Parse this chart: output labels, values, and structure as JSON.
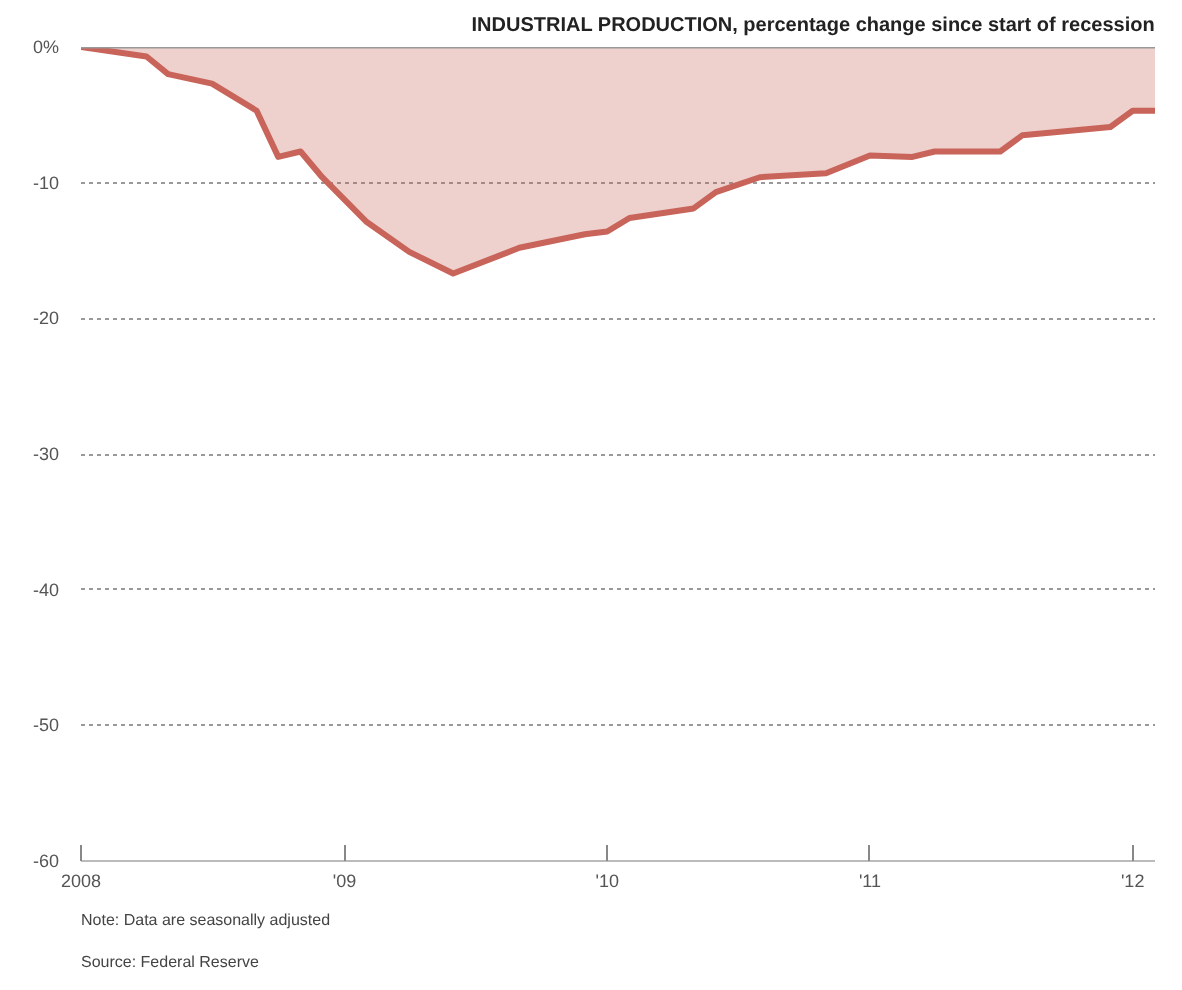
{
  "chart_data": {
    "type": "area",
    "title": "INDUSTRIAL PRODUCTION, percentage change since start of recession",
    "x": [
      "2008-01",
      "2008-04",
      "2008-05",
      "2008-07",
      "2008-09",
      "2008-10",
      "2008-11",
      "2008-12",
      "2009-02",
      "2009-04",
      "2009-06",
      "2009-09",
      "2009-12",
      "2010-01",
      "2010-02",
      "2010-05",
      "2010-06",
      "2010-08",
      "2010-11",
      "2011-01",
      "2011-03",
      "2011-04",
      "2011-07",
      "2011-08",
      "2011-12",
      "2012-01",
      "2012-02"
    ],
    "series": [
      {
        "color": "#c8645a",
        "values": [
          0,
          -0.7,
          -2.0,
          -2.7,
          -4.7,
          -8.1,
          -7.7,
          -9.6,
          -12.9,
          -15.1,
          -16.7,
          -14.8,
          -13.8,
          -13.6,
          -12.6,
          -11.9,
          -10.7,
          -9.6,
          -9.3,
          -8.0,
          -8.1,
          -7.7,
          -7.7,
          -6.5,
          -5.9,
          -4.7,
          -4.7
        ]
      }
    ],
    "xlim": [
      "2008-01",
      "2012-02"
    ],
    "xticks": [
      {
        "value": "2008-01",
        "label": "2008"
      },
      {
        "value": "2009-01",
        "label": "'09"
      },
      {
        "value": "2010-01",
        "label": "'10"
      },
      {
        "value": "2011-01",
        "label": "'11"
      },
      {
        "value": "2012-01",
        "label": "'12"
      }
    ],
    "ylim": [
      -60,
      0
    ],
    "yticks": [
      {
        "value": 0,
        "label": "0%"
      },
      -10,
      -20,
      -30,
      -40,
      -50,
      -60
    ],
    "grid": "y",
    "ref_lines": [
      {
        "axis": "y",
        "value": 0,
        "label": null,
        "color": "#999999"
      }
    ],
    "annotations": [
      "Note: Data are seasonally adjusted",
      "Source: Federal Reserve"
    ]
  }
}
